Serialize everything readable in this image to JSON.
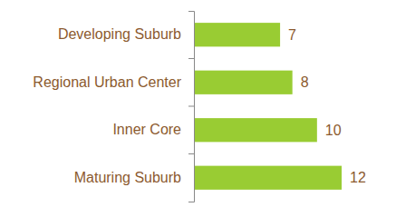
{
  "chart_data": {
    "type": "bar",
    "orientation": "horizontal",
    "categories": [
      "Developing Suburb",
      "Regional Urban Center",
      "Inner Core",
      "Maturing Suburb"
    ],
    "values": [
      7,
      8,
      10,
      12
    ],
    "color": "#99cc33",
    "xlim": [
      0,
      12
    ],
    "data_labels": true,
    "tick_labels": "y"
  }
}
